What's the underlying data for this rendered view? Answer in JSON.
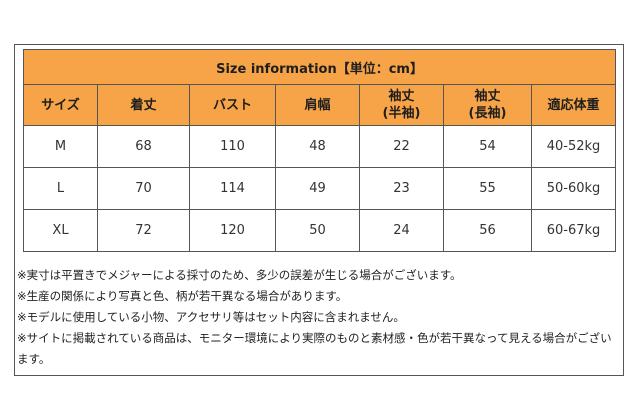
{
  "title": "Size information【単位：cm】",
  "headers": [
    "サイズ",
    "着丈",
    "バスト",
    "肩幅",
    "袖丈\n(半袖)",
    "袖丈\n(長袖)",
    "適応体重"
  ],
  "rows": [
    [
      "M",
      "68",
      "110",
      "48",
      "22",
      "54",
      "40-52kg"
    ],
    [
      "L",
      "70",
      "114",
      "49",
      "23",
      "55",
      "50-60kg"
    ],
    [
      "XL",
      "72",
      "120",
      "50",
      "24",
      "56",
      "60-67kg"
    ]
  ],
  "notes": [
    "※実寸は平置きでメジャーによる採寸のため、多少の誤差が生じる場合がございます。",
    "※生産の関係により写真と色、柄が若干異なる場合があります。",
    "※モデルに使用している小物、アクセサリ等はセット内容に含まれません。",
    "※サイトに掲載されている商品は、モニター環境により実際のものと素材感・色が若干異なって見える場合がございます。"
  ],
  "colors": {
    "header_bg": "#f7a448",
    "border": "#555555"
  }
}
